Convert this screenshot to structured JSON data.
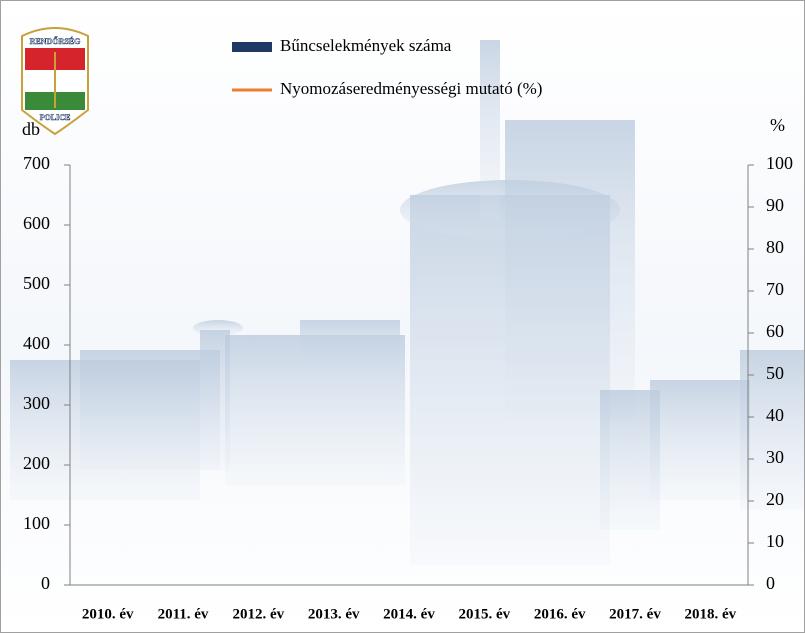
{
  "logo": {
    "top": "RENDŐRSÉG",
    "bottom": "POLICE"
  },
  "chart_data": {
    "type": "bar",
    "categories": [
      "2010. év",
      "2011. év",
      "2012. év",
      "2013. év",
      "2014. év",
      "2015. év",
      "2016. év",
      "2017. év",
      "2018. év"
    ],
    "series": [
      {
        "name": "Bűncselekmények száma",
        "color": "#1f3864",
        "values": [
          null,
          null,
          null,
          null,
          null,
          null,
          null,
          null,
          null
        ]
      },
      {
        "name": "Nyomozáseredményességi mutató (%)",
        "color": "#ed7d31",
        "axis": "y2",
        "values": [
          null,
          null,
          null,
          null,
          null,
          null,
          null,
          null,
          null
        ]
      }
    ],
    "ylabel": "db",
    "y2label": "%",
    "ylim": [
      0,
      700
    ],
    "yticks": [
      0,
      100,
      200,
      300,
      400,
      500,
      600,
      700
    ],
    "y2lim": [
      0,
      100
    ],
    "y2ticks": [
      0,
      10,
      20,
      30,
      40,
      50,
      60,
      70,
      80,
      90,
      100
    ]
  }
}
